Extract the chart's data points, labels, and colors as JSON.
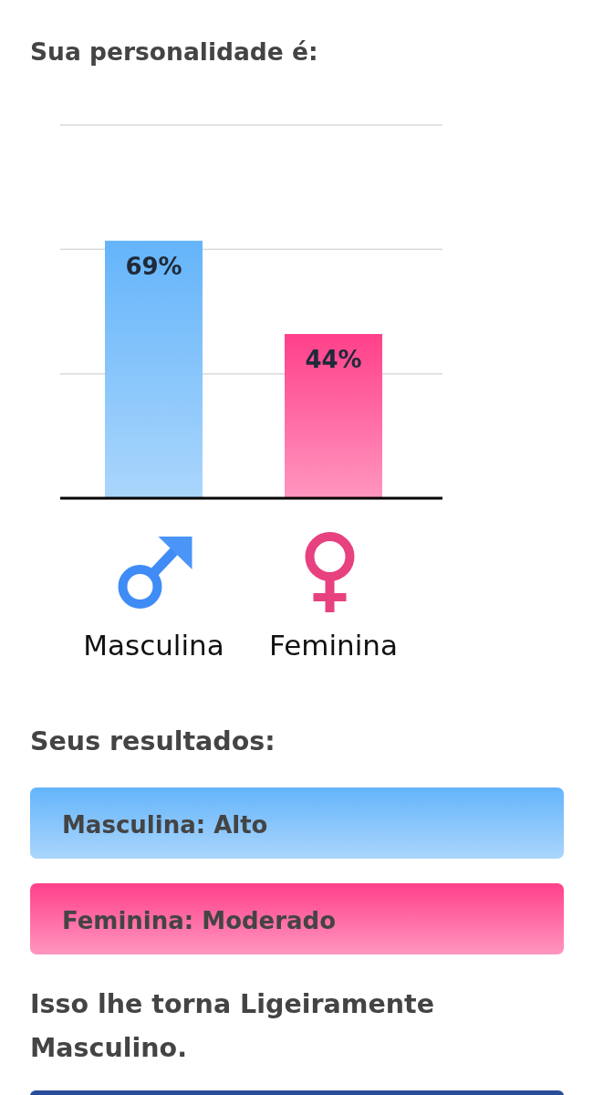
{
  "chart_data": {
    "type": "bar",
    "title": "Sua personalidade é:",
    "categories": [
      "Masculina",
      "Feminina"
    ],
    "values": [
      69,
      44
    ],
    "colors": [
      "#64b4fa",
      "#ff408a"
    ],
    "value_labels": [
      "69%",
      "44%"
    ],
    "ylim": [
      0,
      100
    ],
    "yticks": [
      {
        "value": 33.3,
        "label": null
      },
      {
        "value": 66.7,
        "label": null
      },
      {
        "value": 100,
        "label": null
      }
    ],
    "grid": "y",
    "tick_labels": "x",
    "annotations": [
      "Seus resultados:",
      "Masculina: Alto",
      "Feminina: Moderado",
      "Isso lhe torna Ligeiramente Masculino."
    ]
  }
}
